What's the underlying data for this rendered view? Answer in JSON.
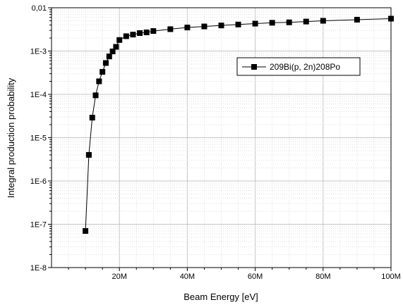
{
  "chart_data": {
    "type": "line",
    "xlabel": "Beam Energy [eV]",
    "ylabel": "Integral production probability",
    "y_scale": "log",
    "xlim": [
      0,
      100000000
    ],
    "ylim": [
      1e-08,
      0.01
    ],
    "x_ticks": [
      {
        "value": 20000000,
        "label": "20M"
      },
      {
        "value": 40000000,
        "label": "40M"
      },
      {
        "value": 60000000,
        "label": "60M"
      },
      {
        "value": 80000000,
        "label": "80M"
      },
      {
        "value": 100000000,
        "label": "100M"
      }
    ],
    "y_ticks": [
      {
        "value": 1e-08,
        "label": "1E-8"
      },
      {
        "value": 1e-07,
        "label": "1E-7"
      },
      {
        "value": 1e-06,
        "label": "1E-6"
      },
      {
        "value": 1e-05,
        "label": "1E-5"
      },
      {
        "value": 0.0001,
        "label": "1E-4"
      },
      {
        "value": 0.001,
        "label": "1E-3"
      },
      {
        "value": 0.01,
        "label": "0,01"
      }
    ],
    "grid": true,
    "legend_position": "top-right",
    "series": [
      {
        "name": "209Bi(p, 2n)208Po",
        "marker": "square",
        "color": "#000000",
        "points": [
          {
            "x": 10000000,
            "y": 7e-08
          },
          {
            "x": 11000000,
            "y": 4e-06
          },
          {
            "x": 12000000,
            "y": 2.9e-05
          },
          {
            "x": 13000000,
            "y": 9.5e-05
          },
          {
            "x": 14000000,
            "y": 0.0002
          },
          {
            "x": 15000000,
            "y": 0.00033
          },
          {
            "x": 16000000,
            "y": 0.00053
          },
          {
            "x": 17000000,
            "y": 0.00075
          },
          {
            "x": 18000000,
            "y": 0.00098
          },
          {
            "x": 19000000,
            "y": 0.00125
          },
          {
            "x": 20000000,
            "y": 0.0018
          },
          {
            "x": 22000000,
            "y": 0.0022
          },
          {
            "x": 24000000,
            "y": 0.0024
          },
          {
            "x": 26000000,
            "y": 0.0026
          },
          {
            "x": 28000000,
            "y": 0.0027
          },
          {
            "x": 30000000,
            "y": 0.0029
          },
          {
            "x": 35000000,
            "y": 0.0032
          },
          {
            "x": 40000000,
            "y": 0.0035
          },
          {
            "x": 45000000,
            "y": 0.0037
          },
          {
            "x": 50000000,
            "y": 0.0039
          },
          {
            "x": 55000000,
            "y": 0.0041
          },
          {
            "x": 60000000,
            "y": 0.0043
          },
          {
            "x": 65000000,
            "y": 0.0045
          },
          {
            "x": 70000000,
            "y": 0.0046
          },
          {
            "x": 75000000,
            "y": 0.0048
          },
          {
            "x": 80000000,
            "y": 0.005
          },
          {
            "x": 90000000,
            "y": 0.0053
          },
          {
            "x": 100000000,
            "y": 0.0056
          }
        ]
      }
    ]
  }
}
